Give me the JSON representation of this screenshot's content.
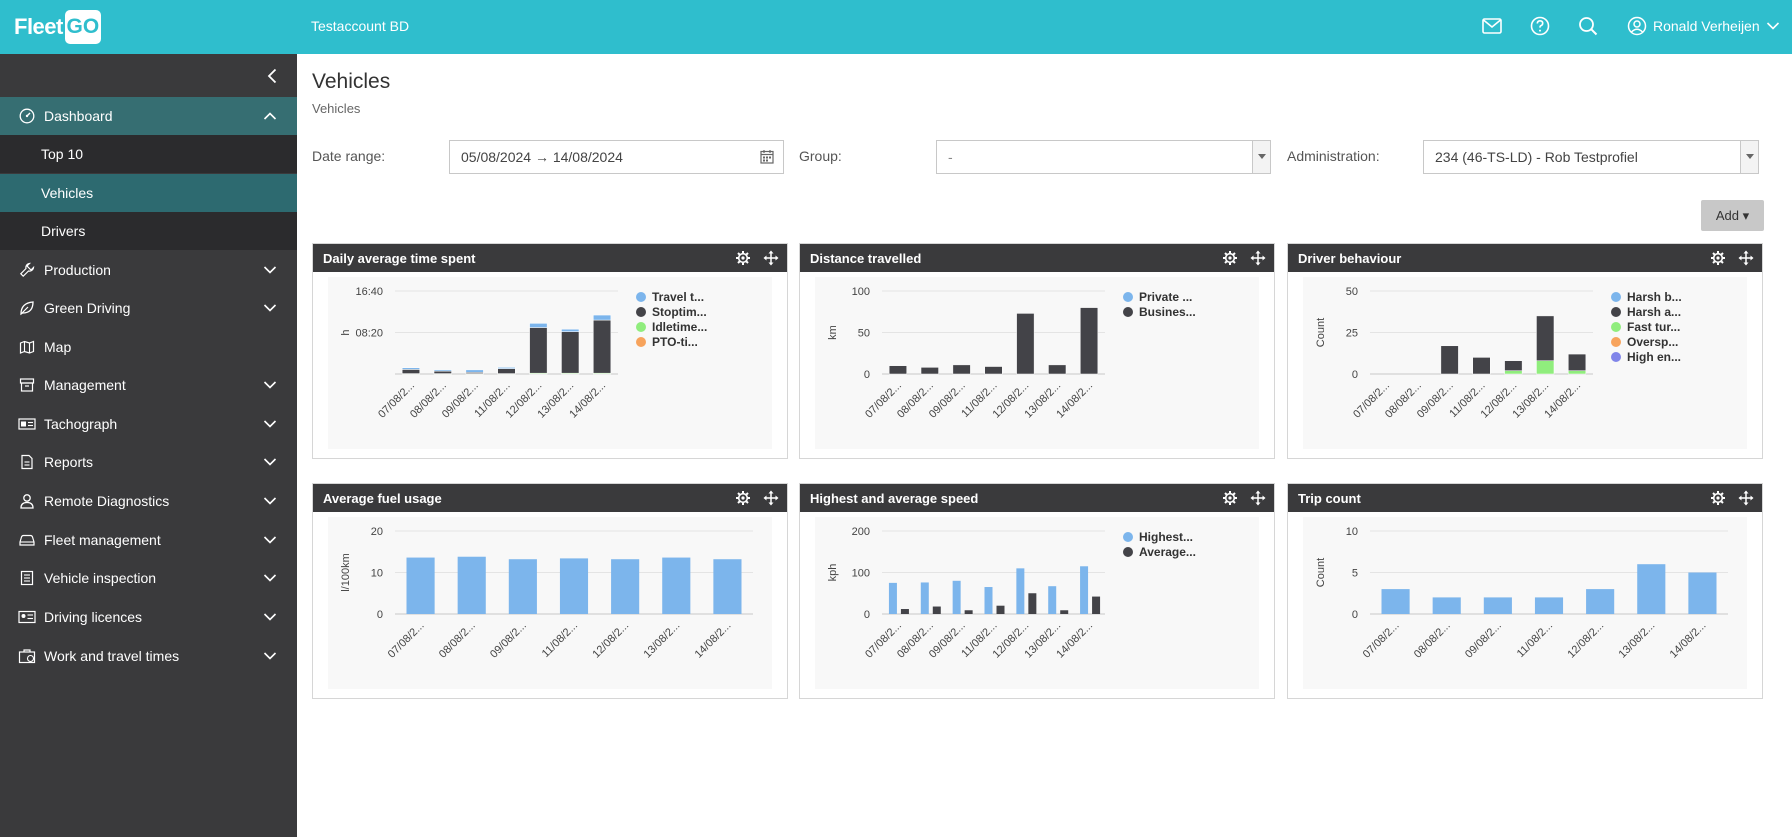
{
  "topbar": {
    "logo_text": "Fleet",
    "logo_box": "GO",
    "account": "Testaccount BD",
    "user_name": "Ronald Verheijen",
    "accent": "#2fbecd"
  },
  "sidebar": {
    "items": [
      {
        "label": "Dashboard",
        "icon": "gauge-icon",
        "expanded": true
      },
      {
        "label": "Production",
        "icon": "wrench-icon"
      },
      {
        "label": "Green Driving",
        "icon": "leaf-icon"
      },
      {
        "label": "Map",
        "icon": "map-icon"
      },
      {
        "label": "Management",
        "icon": "archive-icon"
      },
      {
        "label": "Tachograph",
        "icon": "tachograph-icon"
      },
      {
        "label": "Reports",
        "icon": "report-icon"
      },
      {
        "label": "Remote Diagnostics",
        "icon": "person-icon"
      },
      {
        "label": "Fleet management",
        "icon": "car-icon"
      },
      {
        "label": "Vehicle inspection",
        "icon": "checklist-icon"
      },
      {
        "label": "Driving licences",
        "icon": "id-card-icon"
      },
      {
        "label": "Work and travel times",
        "icon": "briefcase-icon"
      }
    ],
    "sub_items": [
      "Top 10",
      "Vehicles",
      "Drivers"
    ]
  },
  "page": {
    "title": "Vehicles",
    "breadcrumb": "Vehicles",
    "filters": {
      "date_label": "Date range:",
      "date_value": "05/08/2024 → 14/08/2024",
      "group_label": "Group:",
      "group_value": "-",
      "admin_label": "Administration:",
      "admin_value": "234 (46-TS-LD) - Rob Testprofiel"
    },
    "add_label": "Add ▾"
  },
  "widgets": [
    {
      "title": "Daily average time spent"
    },
    {
      "title": "Distance travelled"
    },
    {
      "title": "Driver behaviour"
    },
    {
      "title": "Average fuel usage"
    },
    {
      "title": "Highest and average speed"
    },
    {
      "title": "Trip count"
    }
  ],
  "chart_data": [
    {
      "type": "bar",
      "stacked": true,
      "categories": [
        "07/08/2...",
        "08/08/2...",
        "09/08/2...",
        "11/08/2...",
        "12/08/2...",
        "13/08/2...",
        "14/08/2..."
      ],
      "ylabel": "h",
      "yticks": [
        "16:40",
        "08:20"
      ],
      "ylim": [
        0,
        1000
      ],
      "series": [
        {
          "name": "Travel t...",
          "color": "#7cb5ec",
          "values": [
            20,
            15,
            30,
            15,
            50,
            30,
            60
          ]
        },
        {
          "name": "Stoptim...",
          "color": "#434348",
          "values": [
            50,
            30,
            15,
            60,
            550,
            500,
            640
          ]
        },
        {
          "name": "Idletime...",
          "color": "#90ed7d",
          "values": [
            5,
            5,
            5,
            5,
            10,
            10,
            10
          ]
        },
        {
          "name": "PTO-ti...",
          "color": "#f7a35c",
          "values": [
            0,
            0,
            0,
            0,
            0,
            0,
            0
          ]
        }
      ]
    },
    {
      "type": "bar",
      "stacked": true,
      "categories": [
        "07/08/2...",
        "08/08/2...",
        "09/08/2...",
        "11/08/2...",
        "12/08/2...",
        "13/08/2...",
        "14/08/2..."
      ],
      "ylabel": "km",
      "yticks": [
        "100",
        "50",
        "0"
      ],
      "ylim": [
        0,
        100
      ],
      "series": [
        {
          "name": "Private ...",
          "color": "#7cb5ec",
          "values": [
            0,
            0,
            0,
            0,
            0,
            0,
            0
          ]
        },
        {
          "name": "Busines...",
          "color": "#434348",
          "values": [
            10,
            8,
            11,
            9,
            73,
            11,
            80
          ]
        }
      ]
    },
    {
      "type": "bar",
      "stacked": true,
      "categories": [
        "07/08/2...",
        "08/08/2...",
        "09/08/2...",
        "11/08/2...",
        "12/08/2...",
        "13/08/2...",
        "14/08/2..."
      ],
      "ylabel": "Count",
      "yticks": [
        "50",
        "25",
        "0"
      ],
      "ylim": [
        0,
        50
      ],
      "series": [
        {
          "name": "Harsh b...",
          "color": "#7cb5ec",
          "values": [
            0,
            0,
            0,
            0,
            0,
            0,
            0
          ]
        },
        {
          "name": "Harsh a...",
          "color": "#434348",
          "values": [
            0,
            0,
            17,
            10,
            6,
            27,
            10
          ]
        },
        {
          "name": "Fast tur...",
          "color": "#90ed7d",
          "values": [
            0,
            0,
            0,
            0,
            2,
            8,
            2
          ]
        },
        {
          "name": "Oversp...",
          "color": "#f7a35c",
          "values": [
            0,
            0,
            0,
            0,
            0,
            0,
            0
          ]
        },
        {
          "name": "High en...",
          "color": "#8085e9",
          "values": [
            0,
            0,
            0,
            0,
            0,
            0,
            0
          ]
        }
      ]
    },
    {
      "type": "bar",
      "categories": [
        "07/08/2...",
        "08/08/2...",
        "09/08/2...",
        "11/08/2...",
        "12/08/2...",
        "13/08/2...",
        "14/08/2..."
      ],
      "ylabel": "l/100km",
      "yticks": [
        "20",
        "10",
        "0"
      ],
      "ylim": [
        0,
        20
      ],
      "series": [
        {
          "name": "",
          "color": "#7cb5ec",
          "values": [
            13.6,
            13.8,
            13.2,
            13.4,
            13.2,
            13.6,
            13.2
          ]
        }
      ]
    },
    {
      "type": "bar",
      "categories": [
        "07/08/2...",
        "08/08/2...",
        "09/08/2...",
        "11/08/2...",
        "12/08/2...",
        "13/08/2...",
        "14/08/2..."
      ],
      "ylabel": "kph",
      "yticks": [
        "200",
        "100",
        "0"
      ],
      "ylim": [
        0,
        200
      ],
      "series": [
        {
          "name": "Highest...",
          "color": "#7cb5ec",
          "values": [
            75,
            76,
            80,
            65,
            110,
            67,
            115
          ]
        },
        {
          "name": "Average...",
          "color": "#434348",
          "values": [
            12,
            18,
            9,
            20,
            50,
            9,
            42
          ]
        }
      ]
    },
    {
      "type": "bar",
      "categories": [
        "07/08/2...",
        "08/08/2...",
        "09/08/2...",
        "11/08/2...",
        "12/08/2...",
        "13/08/2...",
        "14/08/2..."
      ],
      "ylabel": "Count",
      "yticks": [
        "10",
        "5",
        "0"
      ],
      "ylim": [
        0,
        10
      ],
      "series": [
        {
          "name": "",
          "color": "#7cb5ec",
          "values": [
            3,
            2,
            2,
            2,
            3,
            6,
            5
          ]
        }
      ]
    }
  ]
}
